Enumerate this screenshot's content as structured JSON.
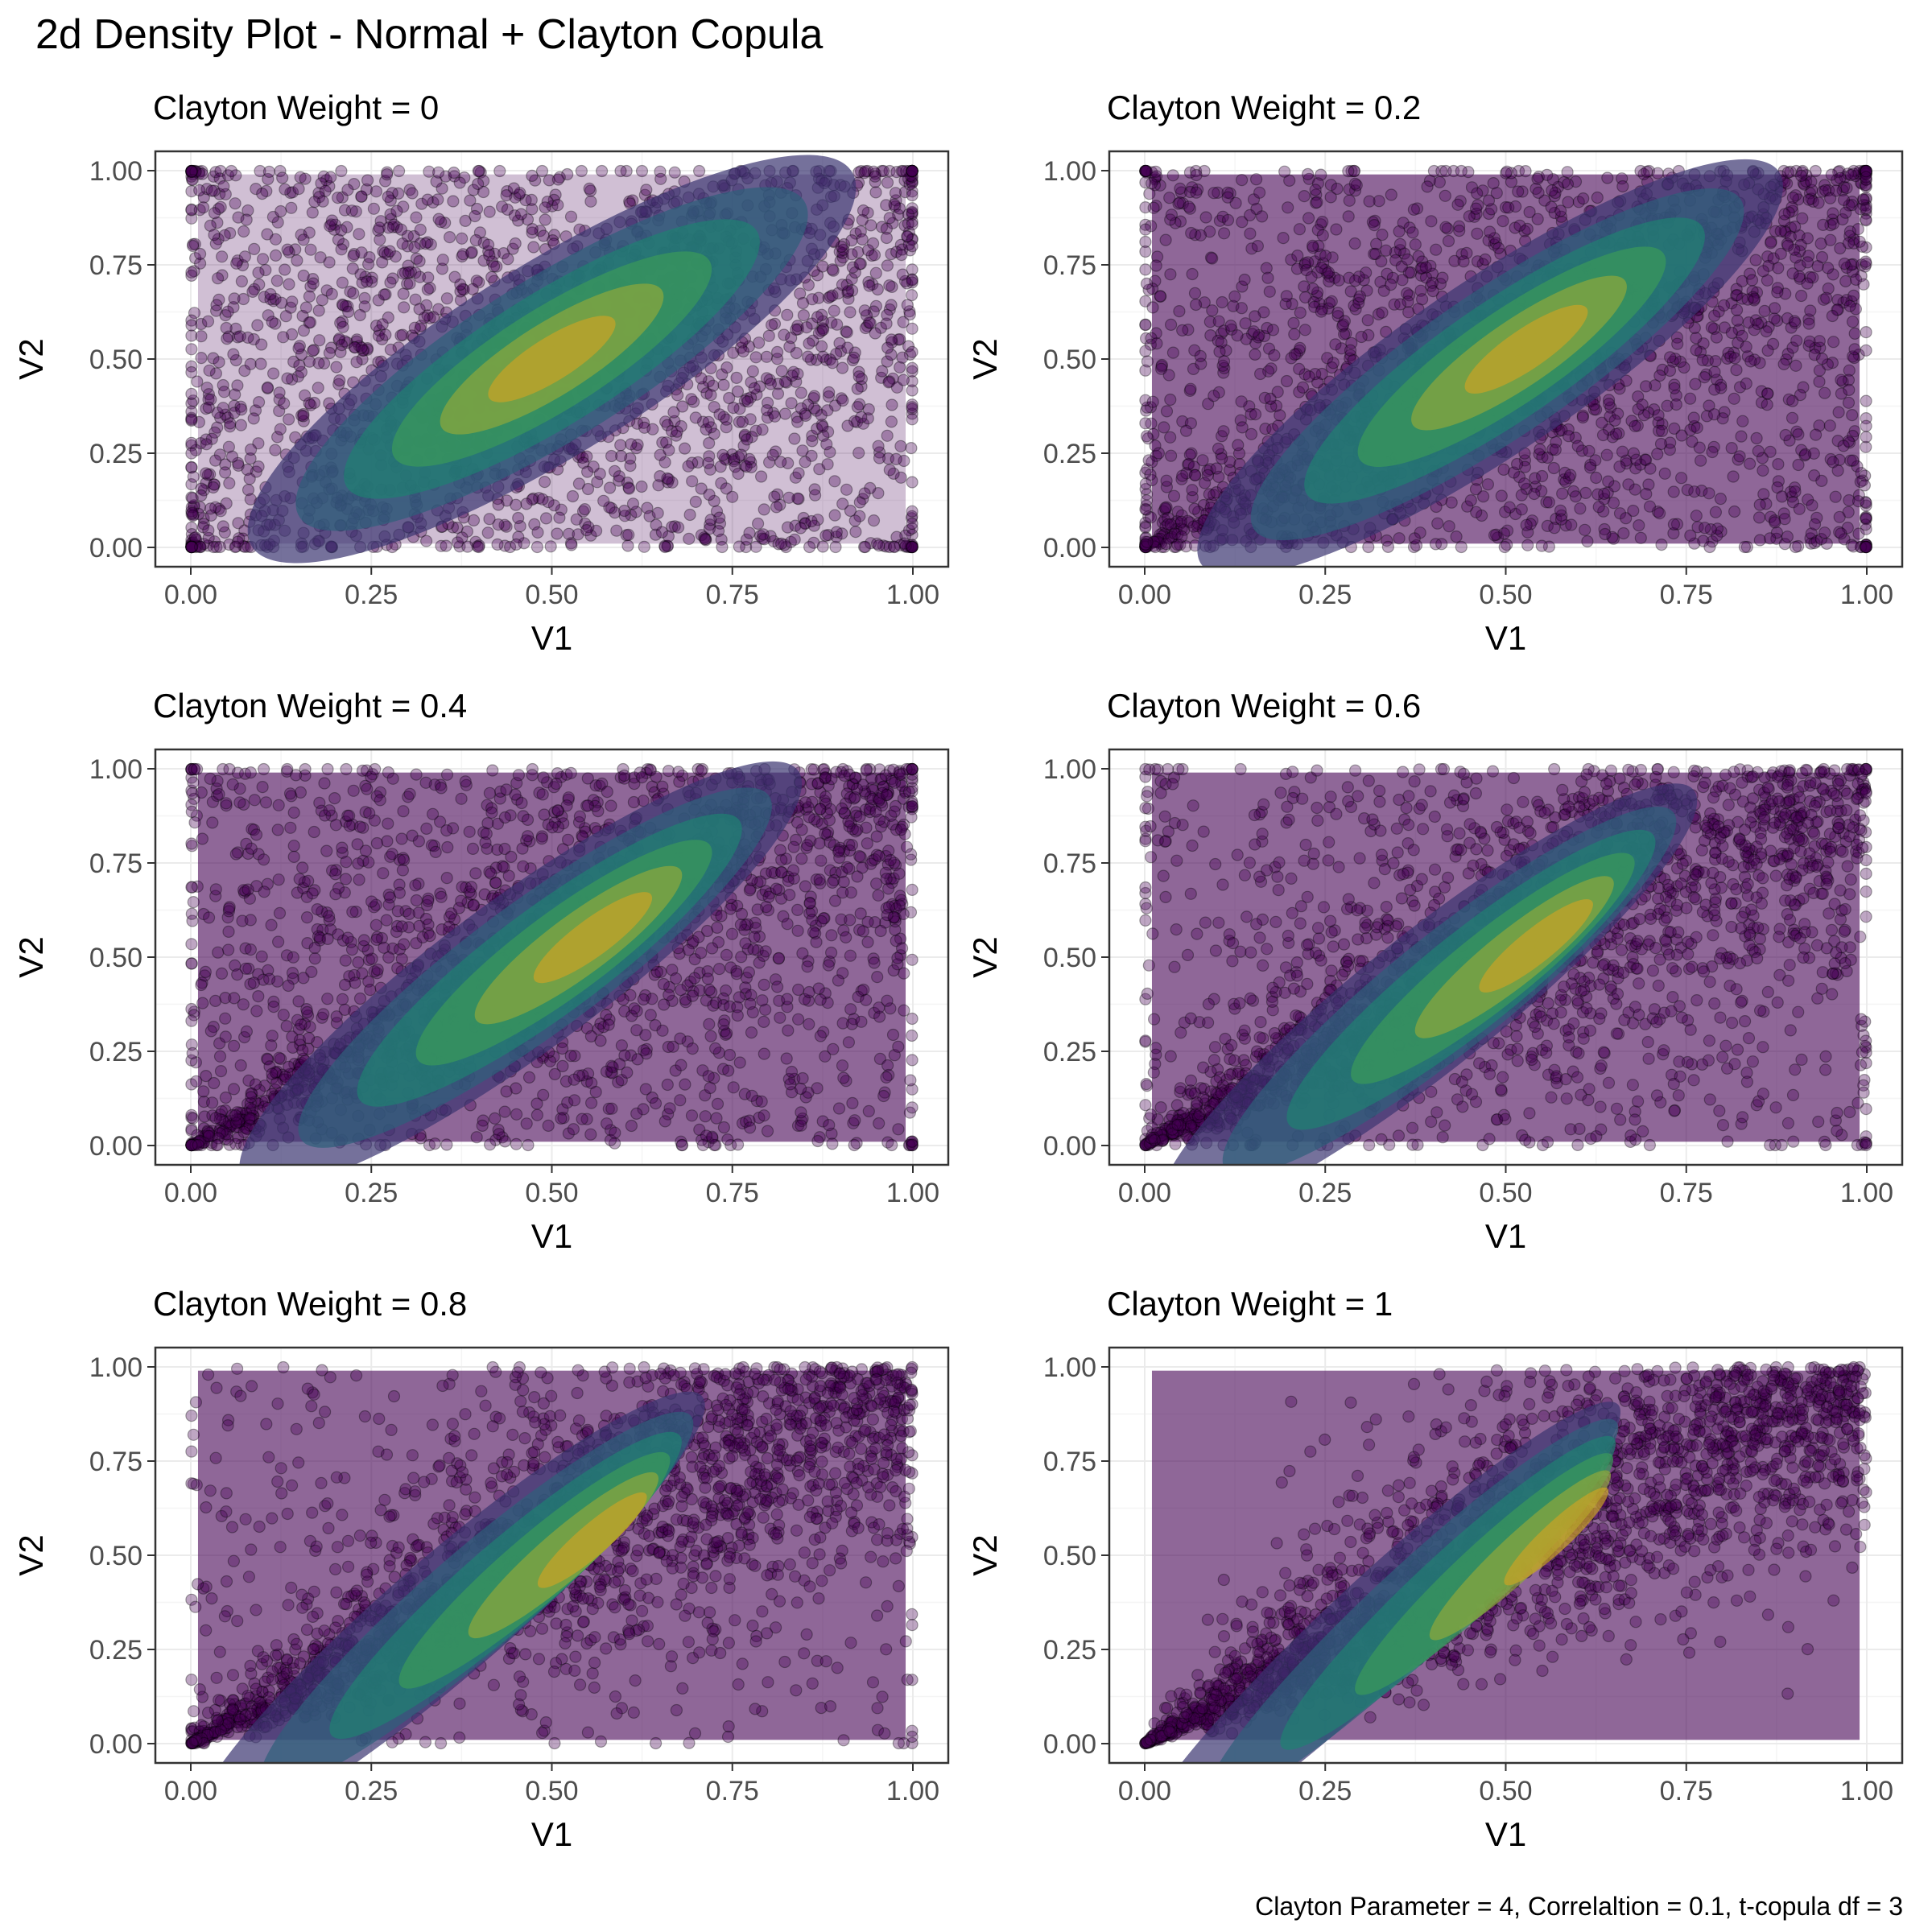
{
  "title": "2d Density Plot - Normal + Clayton Copula",
  "caption": "Clayton Parameter = 4, Correlaltion = 0.1, t-copula df = 3",
  "palette": {
    "viridis": [
      "#440154",
      "#46327e",
      "#365c8d",
      "#277f8e",
      "#1fa187",
      "#4ac16d",
      "#a0da39",
      "#fde725"
    ],
    "density_fills": [
      "#440154",
      "#3b3470",
      "#2e5f7a",
      "#1f8072",
      "#3b9a5a",
      "#8fa83a",
      "#c9a225"
    ],
    "point_color": "#440154",
    "panel_border": "#333333",
    "grid_major": "#ebebeb",
    "grid_minor": "#f5f5f5"
  },
  "chart_data": [
    {
      "type": "scatter",
      "overlay": "2d density (filled contours)",
      "title": "Clayton Weight = 0",
      "weight": 0,
      "xlabel": "V1",
      "ylabel": "V2",
      "xlim": [
        0,
        1
      ],
      "ylim": [
        0,
        1
      ],
      "xticks": [
        "0.00",
        "0.25",
        "0.50",
        "0.75",
        "1.00"
      ],
      "yticks": [
        "0.00",
        "0.25",
        "0.50",
        "0.75",
        "1.00"
      ],
      "grid": true
    },
    {
      "type": "scatter",
      "overlay": "2d density (filled contours)",
      "title": "Clayton Weight = 0.2",
      "weight": 0.2,
      "xlabel": "V1",
      "ylabel": "V2",
      "xlim": [
        0,
        1
      ],
      "ylim": [
        0,
        1
      ],
      "xticks": [
        "0.00",
        "0.25",
        "0.50",
        "0.75",
        "1.00"
      ],
      "yticks": [
        "0.00",
        "0.25",
        "0.50",
        "0.75",
        "1.00"
      ],
      "grid": true
    },
    {
      "type": "scatter",
      "overlay": "2d density (filled contours)",
      "title": "Clayton Weight = 0.4",
      "weight": 0.4,
      "xlabel": "V1",
      "ylabel": "V2",
      "xlim": [
        0,
        1
      ],
      "ylim": [
        0,
        1
      ],
      "xticks": [
        "0.00",
        "0.25",
        "0.50",
        "0.75",
        "1.00"
      ],
      "yticks": [
        "0.00",
        "0.25",
        "0.50",
        "0.75",
        "1.00"
      ],
      "grid": true
    },
    {
      "type": "scatter",
      "overlay": "2d density (filled contours)",
      "title": "Clayton Weight = 0.6",
      "weight": 0.6,
      "xlabel": "V1",
      "ylabel": "V2",
      "xlim": [
        0,
        1
      ],
      "ylim": [
        0,
        1
      ],
      "xticks": [
        "0.00",
        "0.25",
        "0.50",
        "0.75",
        "1.00"
      ],
      "yticks": [
        "0.00",
        "0.25",
        "0.50",
        "0.75",
        "1.00"
      ],
      "grid": true
    },
    {
      "type": "scatter",
      "overlay": "2d density (filled contours)",
      "title": "Clayton Weight = 0.8",
      "weight": 0.8,
      "xlabel": "V1",
      "ylabel": "V2",
      "xlim": [
        0,
        1
      ],
      "ylim": [
        0,
        1
      ],
      "xticks": [
        "0.00",
        "0.25",
        "0.50",
        "0.75",
        "1.00"
      ],
      "yticks": [
        "0.00",
        "0.25",
        "0.50",
        "0.75",
        "1.00"
      ],
      "grid": true
    },
    {
      "type": "scatter",
      "overlay": "2d density (filled contours)",
      "title": "Clayton Weight = 1",
      "weight": 1,
      "xlabel": "V1",
      "ylabel": "V2",
      "xlim": [
        0,
        1
      ],
      "ylim": [
        0,
        1
      ],
      "xticks": [
        "0.00",
        "0.25",
        "0.50",
        "0.75",
        "1.00"
      ],
      "yticks": [
        "0.00",
        "0.25",
        "0.50",
        "0.75",
        "1.00"
      ],
      "grid": true
    }
  ]
}
